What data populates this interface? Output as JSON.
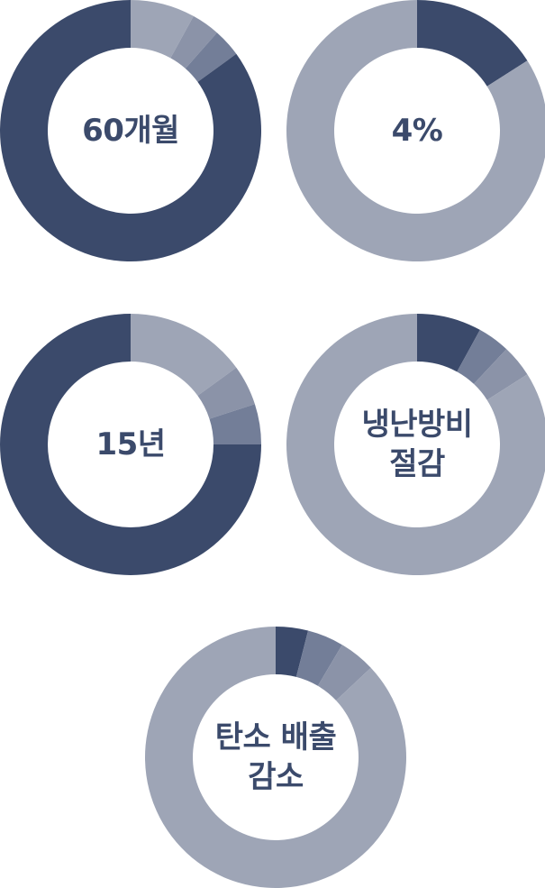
{
  "colors": {
    "dark": "#3b4a6b",
    "light": "#9ea5b6",
    "mid1": "#8b93a8",
    "mid2": "#737e98",
    "hole": "#ffffff"
  },
  "chart_data": [
    {
      "type": "pie",
      "center_label": "60개월",
      "slices": [
        {
          "value": 8.0,
          "color": "#9ea5b6"
        },
        {
          "value": 3.5,
          "color": "#8b93a8"
        },
        {
          "value": 3.5,
          "color": "#737e98"
        },
        {
          "value": 85.0,
          "color": "#3b4a6b"
        }
      ]
    },
    {
      "type": "pie",
      "center_label": "4%",
      "slices": [
        {
          "value": 16.0,
          "color": "#3b4a6b"
        },
        {
          "value": 84.0,
          "color": "#9ea5b6"
        }
      ]
    },
    {
      "type": "pie",
      "center_label": "15년",
      "slices": [
        {
          "value": 15.0,
          "color": "#9ea5b6"
        },
        {
          "value": 5.0,
          "color": "#8b93a8"
        },
        {
          "value": 5.0,
          "color": "#737e98"
        },
        {
          "value": 75.0,
          "color": "#3b4a6b"
        }
      ]
    },
    {
      "type": "pie",
      "center_label": "냉난방비\n절감",
      "slices": [
        {
          "value": 8.0,
          "color": "#3b4a6b"
        },
        {
          "value": 4.0,
          "color": "#737e98"
        },
        {
          "value": 4.0,
          "color": "#8b93a8"
        },
        {
          "value": 84.0,
          "color": "#9ea5b6"
        }
      ]
    },
    {
      "type": "pie",
      "center_label": "탄소 배출\n감소",
      "slices": [
        {
          "value": 4.0,
          "color": "#3b4a6b"
        },
        {
          "value": 4.5,
          "color": "#737e98"
        },
        {
          "value": 4.5,
          "color": "#8b93a8"
        },
        {
          "value": 87.0,
          "color": "#9ea5b6"
        }
      ]
    }
  ]
}
